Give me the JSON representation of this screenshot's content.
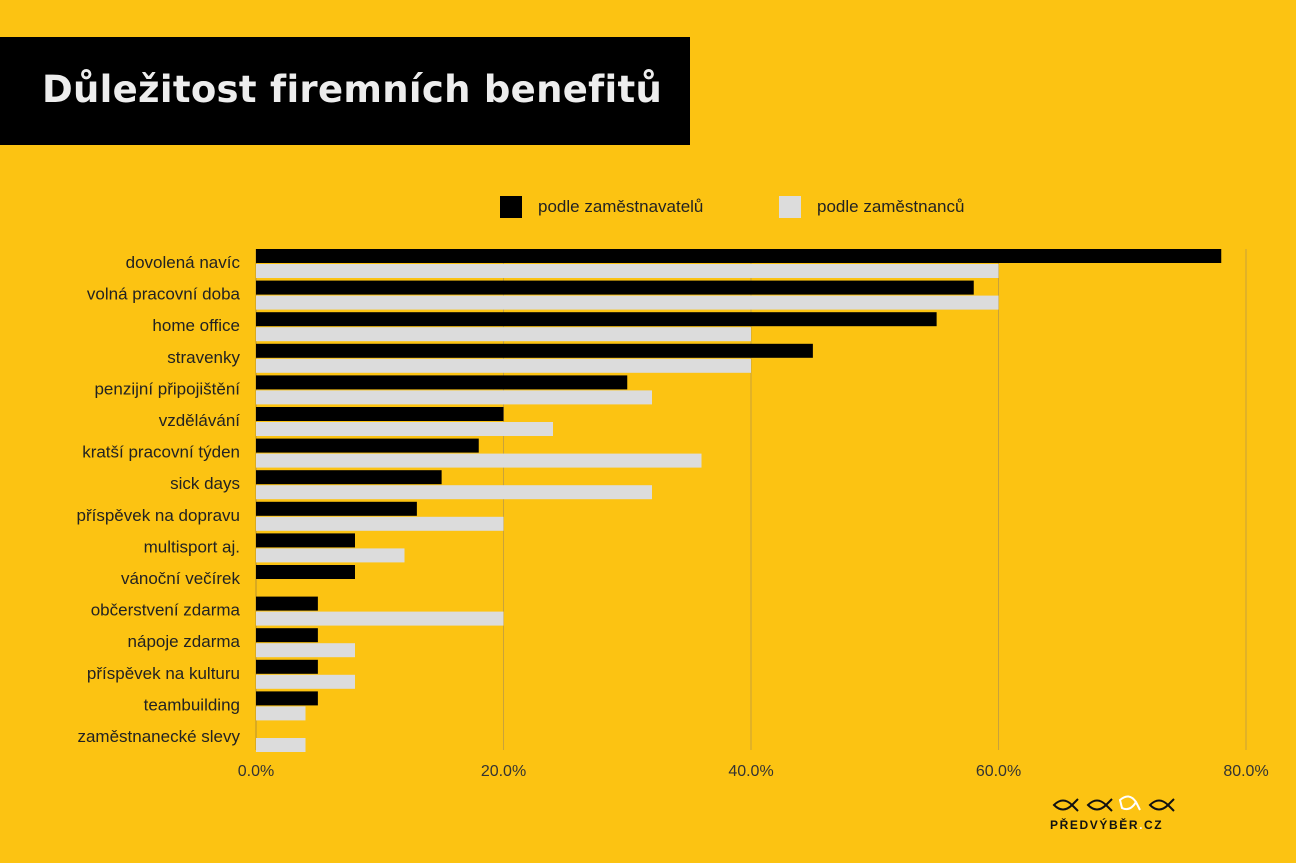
{
  "title": "Důležitost firemních benefitů",
  "colors": {
    "background": "#FCC312",
    "employers": "#000000",
    "employees": "#DCDCDC",
    "grid": "#C9A23A"
  },
  "legend": {
    "employers": "podle zaměstnavatelů",
    "employees": "podle zaměstnanců"
  },
  "logo": {
    "text_main": "PŘEDVÝBĚR",
    "text_dot": ".",
    "text_tld": "CZ",
    "icon": "fish-icons"
  },
  "chart_data": {
    "type": "bar",
    "orientation": "horizontal",
    "categories": [
      "dovolená navíc",
      "volná pracovní doba",
      "home office",
      "stravenky",
      "penzijní připojištění",
      "vzdělávání",
      "kratší pracovní týden",
      "sick days",
      "příspěvek na dopravu",
      "multisport aj.",
      "vánoční večírek",
      "občerstvení zdarma",
      "nápoje zdarma",
      "příspěvek na kulturu",
      "teambuilding",
      "zaměstnanecké slevy"
    ],
    "series": [
      {
        "name": "podle zaměstnavatelů",
        "values": [
          78,
          58,
          55,
          45,
          30,
          20,
          18,
          15,
          13,
          8,
          8,
          5,
          5,
          5,
          5,
          0
        ]
      },
      {
        "name": "podle zaměstnanců",
        "values": [
          60,
          60,
          40,
          40,
          32,
          24,
          36,
          32,
          20,
          12,
          0,
          20,
          8,
          8,
          4,
          4
        ]
      }
    ],
    "xlim": [
      0,
      80
    ],
    "xticks": [
      "0.0%",
      "20.0%",
      "40.0%",
      "60.0%",
      "80.0%"
    ],
    "grid": true,
    "legend_position": "top"
  }
}
